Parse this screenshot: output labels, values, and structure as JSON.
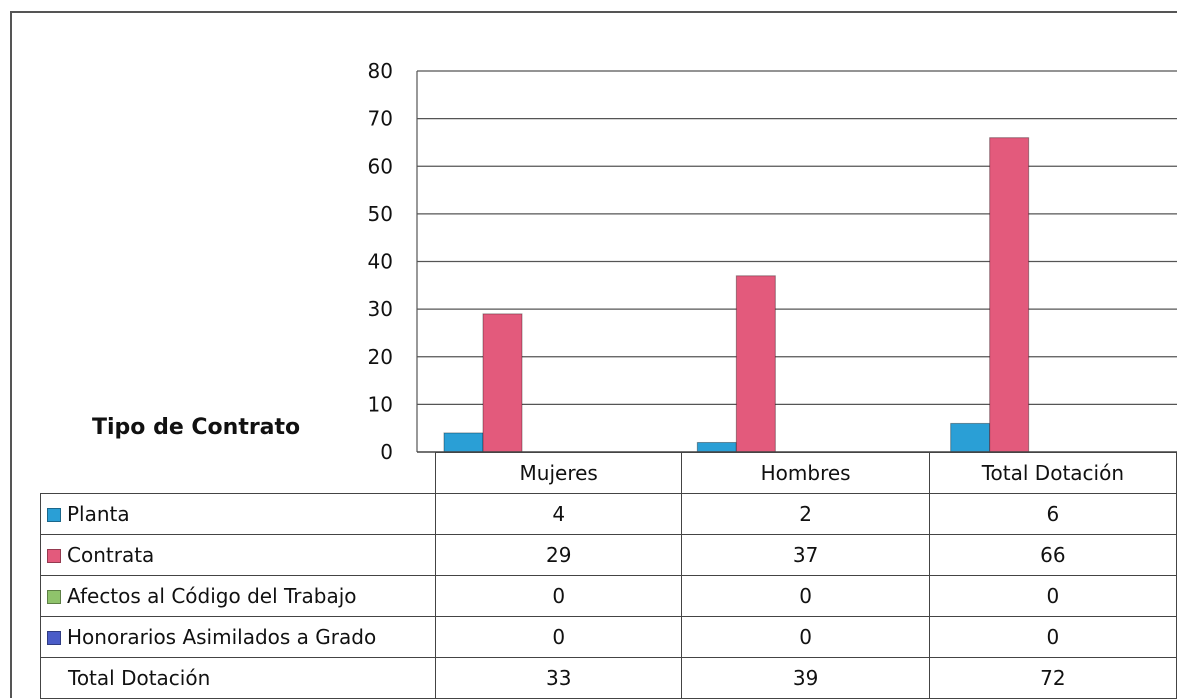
{
  "chart_data": {
    "type": "bar",
    "categories": [
      "Mujeres",
      "Hombres",
      "Total Dotación"
    ],
    "series": [
      {
        "name": "Planta",
        "values": [
          4,
          2,
          6
        ],
        "color": "#2a9fd6"
      },
      {
        "name": "Contrata",
        "values": [
          29,
          37,
          66
        ],
        "color": "#e35a7c"
      },
      {
        "name": "Afectos al Código del Trabajo",
        "values": [
          0,
          0,
          0
        ],
        "color": "#8fc36b"
      },
      {
        "name": "Honorarios Asimilados a Grado",
        "values": [
          0,
          0,
          0
        ],
        "color": "#4a5cc8"
      }
    ],
    "ylabel": "Tipo de Contrato",
    "ylim": [
      0,
      80
    ],
    "yticks": [
      0,
      10,
      20,
      30,
      40,
      50,
      60,
      70,
      80
    ],
    "grid": true,
    "legend": "data-table",
    "total_row": {
      "label": "Total Dotación",
      "values": [
        33,
        39,
        72
      ]
    }
  }
}
